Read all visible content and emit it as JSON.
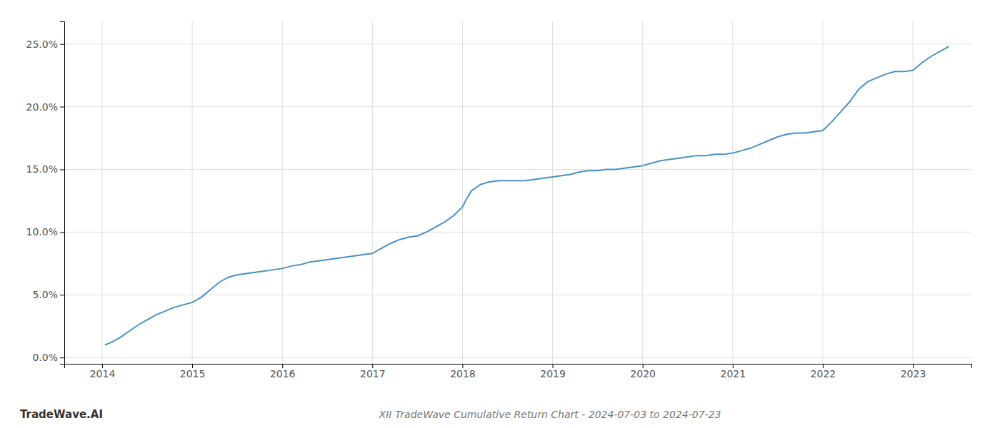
{
  "chart_data": {
    "type": "line",
    "title": "XII TradeWave Cumulative Return Chart - 2024-07-03 to 2024-07-23",
    "annotations": [
      "TradeWave.AI"
    ],
    "color": "#4a90c4",
    "grid": true,
    "xlim": [
      2013.58,
      2023.65
    ],
    "ylim": [
      -0.005,
      0.268
    ],
    "xticks": [
      2014,
      2015,
      2016,
      2017,
      2018,
      2019,
      2020,
      2021,
      2022,
      2023
    ],
    "yticks": [
      {
        "value": 0.0,
        "label": "0.0%"
      },
      {
        "value": 0.05,
        "label": "5.0%"
      },
      {
        "value": 0.1,
        "label": "10.0%"
      },
      {
        "value": 0.15,
        "label": "15.0%"
      },
      {
        "value": 0.2,
        "label": "20.0%"
      },
      {
        "value": 0.25,
        "label": "25.0%"
      }
    ],
    "x": [
      2014.03,
      2014.1,
      2014.2,
      2014.3,
      2014.4,
      2014.5,
      2014.6,
      2014.7,
      2014.8,
      2014.9,
      2015.0,
      2015.1,
      2015.2,
      2015.3,
      2015.4,
      2015.5,
      2015.6,
      2015.7,
      2015.8,
      2015.9,
      2016.0,
      2016.05,
      2016.1,
      2016.2,
      2016.3,
      2016.4,
      2016.5,
      2016.6,
      2016.7,
      2016.8,
      2016.9,
      2017.0,
      2017.1,
      2017.2,
      2017.3,
      2017.4,
      2017.5,
      2017.6,
      2017.7,
      2017.8,
      2017.9,
      2018.0,
      2018.05,
      2018.1,
      2018.2,
      2018.3,
      2018.4,
      2018.5,
      2018.6,
      2018.7,
      2018.8,
      2018.9,
      2019.0,
      2019.1,
      2019.2,
      2019.3,
      2019.4,
      2019.5,
      2019.6,
      2019.7,
      2019.8,
      2019.9,
      2020.0,
      2020.1,
      2020.2,
      2020.3,
      2020.4,
      2020.5,
      2020.6,
      2020.7,
      2020.8,
      2020.9,
      2021.0,
      2021.05,
      2021.1,
      2021.2,
      2021.3,
      2021.4,
      2021.5,
      2021.6,
      2021.7,
      2021.8,
      2021.9,
      2022.0,
      2022.1,
      2022.2,
      2022.3,
      2022.4,
      2022.5,
      2022.6,
      2022.7,
      2022.8,
      2022.9,
      2023.0,
      2023.1,
      2023.2,
      2023.3,
      2023.4
    ],
    "values": [
      0.01,
      0.012,
      0.016,
      0.021,
      0.026,
      0.03,
      0.034,
      0.037,
      0.04,
      0.042,
      0.044,
      0.048,
      0.054,
      0.06,
      0.064,
      0.066,
      0.067,
      0.068,
      0.069,
      0.07,
      0.071,
      0.072,
      0.073,
      0.074,
      0.076,
      0.077,
      0.078,
      0.079,
      0.08,
      0.081,
      0.082,
      0.083,
      0.087,
      0.091,
      0.094,
      0.096,
      0.097,
      0.1,
      0.104,
      0.108,
      0.113,
      0.12,
      0.127,
      0.133,
      0.138,
      0.14,
      0.141,
      0.141,
      0.141,
      0.141,
      0.142,
      0.143,
      0.144,
      0.145,
      0.146,
      0.148,
      0.149,
      0.149,
      0.15,
      0.15,
      0.151,
      0.152,
      0.153,
      0.155,
      0.157,
      0.158,
      0.159,
      0.16,
      0.161,
      0.161,
      0.162,
      0.162,
      0.163,
      0.164,
      0.165,
      0.167,
      0.17,
      0.173,
      0.176,
      0.178,
      0.179,
      0.179,
      0.18,
      0.181,
      0.188,
      0.196,
      0.204,
      0.214,
      0.22,
      0.223,
      0.226,
      0.228,
      0.228,
      0.229,
      0.235,
      0.24,
      0.244,
      0.248
    ]
  }
}
